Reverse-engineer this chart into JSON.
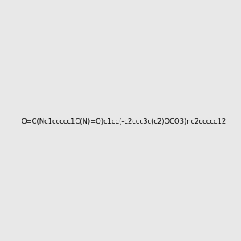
{
  "smiles": "O=C(Nc1ccccc1C(N)=O)c1cc(-c2ccc3c(c2)OCO3)nc2ccccc12",
  "image_size": 300,
  "background_color": "#e8e8e8",
  "bond_color": "#1a1a1a",
  "atom_colors": {
    "N": "#0000cc",
    "O": "#cc2200"
  },
  "title": ""
}
